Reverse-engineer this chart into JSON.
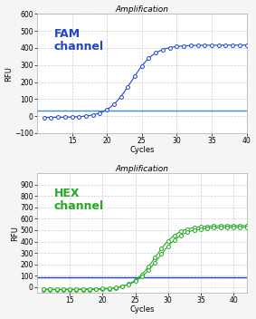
{
  "title": "Amplification",
  "fam_label": "FAM\nchannel",
  "hex_label": "HEX\nchannel",
  "xlabel": "Cycles",
  "ylabel": "RFU",
  "fam_color": "#2244cc",
  "hex_color": "#22aa22",
  "threshold_fam_color": "#4488cc",
  "threshold_hex_color": "#2244cc",
  "fam_xlim": [
    10,
    40
  ],
  "fam_ylim": [
    -100,
    600
  ],
  "fam_yticks": [
    -100,
    0,
    100,
    200,
    300,
    400,
    500,
    600
  ],
  "fam_xticks": [
    15,
    20,
    25,
    30,
    35,
    40
  ],
  "fam_threshold": 35,
  "hex_xlim": [
    10,
    42
  ],
  "hex_ylim": [
    -50,
    1000
  ],
  "hex_yticks": [
    0,
    100,
    200,
    300,
    400,
    500,
    600,
    700,
    800,
    900
  ],
  "hex_xticks": [
    15,
    20,
    25,
    30,
    35,
    40
  ],
  "hex_threshold": 85,
  "bg_color": "#ffffff",
  "fig_bg_color": "#f5f5f5",
  "grid_color": "#cccccc",
  "title_fontsize": 6.5,
  "axis_label_fontsize": 6,
  "channel_fontsize": 9,
  "tick_fontsize": 5.5
}
